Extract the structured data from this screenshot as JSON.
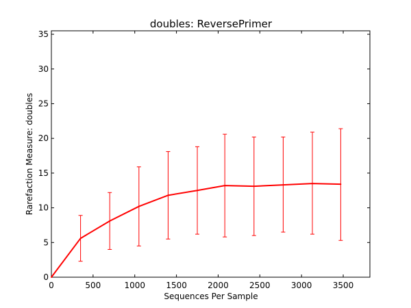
{
  "chart_data": {
    "type": "line",
    "title": "doubles: ReversePrimer",
    "xlabel": "Sequences Per Sample",
    "ylabel": "Rarefaction Measure: doubles",
    "xlim": [
      0,
      3820
    ],
    "ylim": [
      0,
      35.5
    ],
    "xticks": [
      0,
      500,
      1000,
      1500,
      2000,
      2500,
      3000,
      3500
    ],
    "yticks": [
      0,
      5,
      10,
      15,
      20,
      25,
      30,
      35
    ],
    "grid": false,
    "color": "#ff0000",
    "series": [
      {
        "x": [
          0,
          350,
          700,
          1050,
          1400,
          1750,
          2080,
          2430,
          2780,
          3130,
          3470
        ],
        "y": [
          0,
          5.6,
          8.1,
          10.2,
          11.8,
          12.5,
          13.2,
          13.1,
          13.3,
          13.5,
          13.4
        ],
        "err_low": [
          0,
          2.3,
          4.0,
          4.5,
          5.5,
          6.2,
          5.8,
          6.0,
          6.5,
          6.2,
          5.3
        ],
        "err_high": [
          0,
          8.9,
          12.2,
          15.9,
          18.1,
          18.8,
          20.6,
          20.2,
          20.2,
          20.9,
          21.4
        ]
      }
    ]
  }
}
